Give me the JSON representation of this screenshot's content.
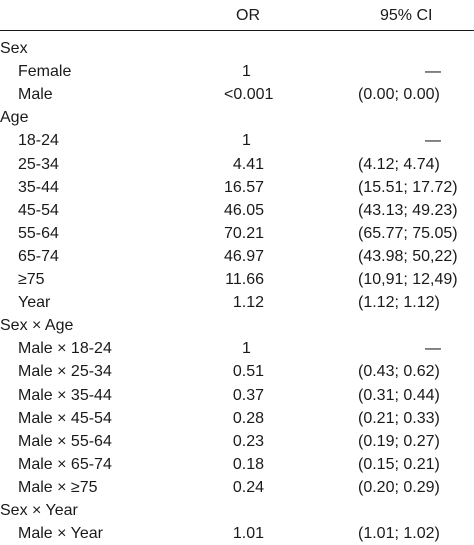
{
  "columns": {
    "or": "OR",
    "ci": "95% CI"
  },
  "rows": [
    {
      "label": "Sex",
      "indent": false,
      "or": "",
      "ci": ""
    },
    {
      "label": "Female",
      "indent": true,
      "or": "1",
      "ci": "—"
    },
    {
      "label": "Male",
      "indent": true,
      "or": "<0.001",
      "ci": "(0.00; 0.00)"
    },
    {
      "label": "Age",
      "indent": false,
      "or": "",
      "ci": ""
    },
    {
      "label": "18-24",
      "indent": true,
      "or": "1",
      "ci": "—"
    },
    {
      "label": "25-34",
      "indent": true,
      "or": "4.41",
      "ci": "(4.12; 4.74)"
    },
    {
      "label": "35-44",
      "indent": true,
      "or": "16.57",
      "ci": "(15.51; 17.72)"
    },
    {
      "label": "45-54",
      "indent": true,
      "or": "46.05",
      "ci": "(43.13; 49.23)"
    },
    {
      "label": "55-64",
      "indent": true,
      "or": "70.21",
      "ci": "(65.77; 75.05)"
    },
    {
      "label": "65-74",
      "indent": true,
      "or": "46.97",
      "ci": "(43.98; 50,22)"
    },
    {
      "label": "≥75",
      "indent": true,
      "or": "11.66",
      "ci": "(10,91; 12,49)"
    },
    {
      "label": "Year",
      "indent": true,
      "or": "1.12",
      "ci": "(1.12; 1.12)"
    },
    {
      "label": "Sex × Age",
      "indent": false,
      "or": "",
      "ci": ""
    },
    {
      "label": "Male × 18-24",
      "indent": true,
      "or": "1",
      "ci": "—"
    },
    {
      "label": "Male × 25-34",
      "indent": true,
      "or": "0.51",
      "ci": "(0.43; 0.62)"
    },
    {
      "label": "Male × 35-44",
      "indent": true,
      "or": "0.37",
      "ci": "(0.31; 0.44)"
    },
    {
      "label": "Male × 45-54",
      "indent": true,
      "or": "0.28",
      "ci": "(0.21; 0.33)"
    },
    {
      "label": "Male × 55-64",
      "indent": true,
      "or": "0.23",
      "ci": "(0.19; 0.27)"
    },
    {
      "label": "Male × 65-74",
      "indent": true,
      "or": "0.18",
      "ci": "(0.15; 0.21)"
    },
    {
      "label": "Male × ≥75",
      "indent": true,
      "or": "0.24",
      "ci": "(0.20; 0.29)"
    },
    {
      "label": "Sex × Year",
      "indent": false,
      "or": "",
      "ci": ""
    },
    {
      "label": "Male × Year",
      "indent": true,
      "or": "1.01",
      "ci": "(1.01; 1.02)"
    }
  ]
}
